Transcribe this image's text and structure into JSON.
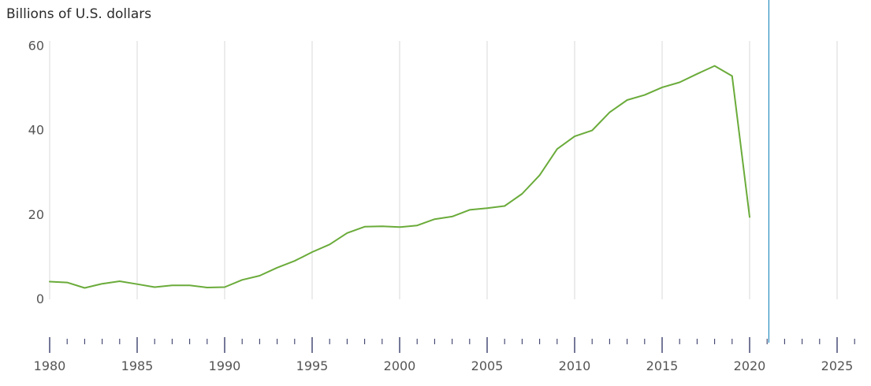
{
  "chart_data": {
    "type": "line",
    "title": "",
    "ylabel": "Billions of U.S. dollars",
    "xlabel": "",
    "xlim": [
      1980,
      2026
    ],
    "ylim": [
      0,
      60
    ],
    "y_ticks": [
      0,
      20,
      40,
      60
    ],
    "x_major_ticks": [
      1980,
      1985,
      1990,
      1995,
      2000,
      2005,
      2010,
      2015,
      2020,
      2025
    ],
    "x_minor_step": 1,
    "grid": "vertical",
    "marker_year": 2021.1,
    "series": [
      {
        "color": "#6aab3a",
        "x": [
          1980,
          1981,
          1982,
          1983,
          1984,
          1985,
          1986,
          1987,
          1988,
          1989,
          1990,
          1991,
          1992,
          1993,
          1994,
          1995,
          1996,
          1997,
          1998,
          1999,
          2000,
          2001,
          2002,
          2003,
          2004,
          2005,
          2006,
          2007,
          2008,
          2009,
          2010,
          2011,
          2012,
          2013,
          2014,
          2015,
          2016,
          2017,
          2018,
          2019,
          2020
        ],
        "values": [
          4.2,
          4.0,
          2.7,
          3.7,
          4.3,
          3.6,
          2.9,
          3.3,
          3.3,
          2.8,
          2.9,
          4.6,
          5.6,
          7.5,
          9.1,
          11.2,
          13.0,
          15.7,
          17.2,
          17.3,
          17.1,
          17.5,
          19.0,
          19.6,
          21.2,
          21.6,
          22.1,
          25.0,
          29.4,
          35.6,
          38.6,
          40.0,
          44.3,
          47.2,
          48.4,
          50.2,
          51.4,
          53.4,
          55.3,
          52.9,
          19.5
        ]
      }
    ]
  },
  "colors": {
    "line": "#6aab3a",
    "grid": "#d9d9d9",
    "marker": "#2a8fc0",
    "axis_tick": "#3a3f6b"
  }
}
